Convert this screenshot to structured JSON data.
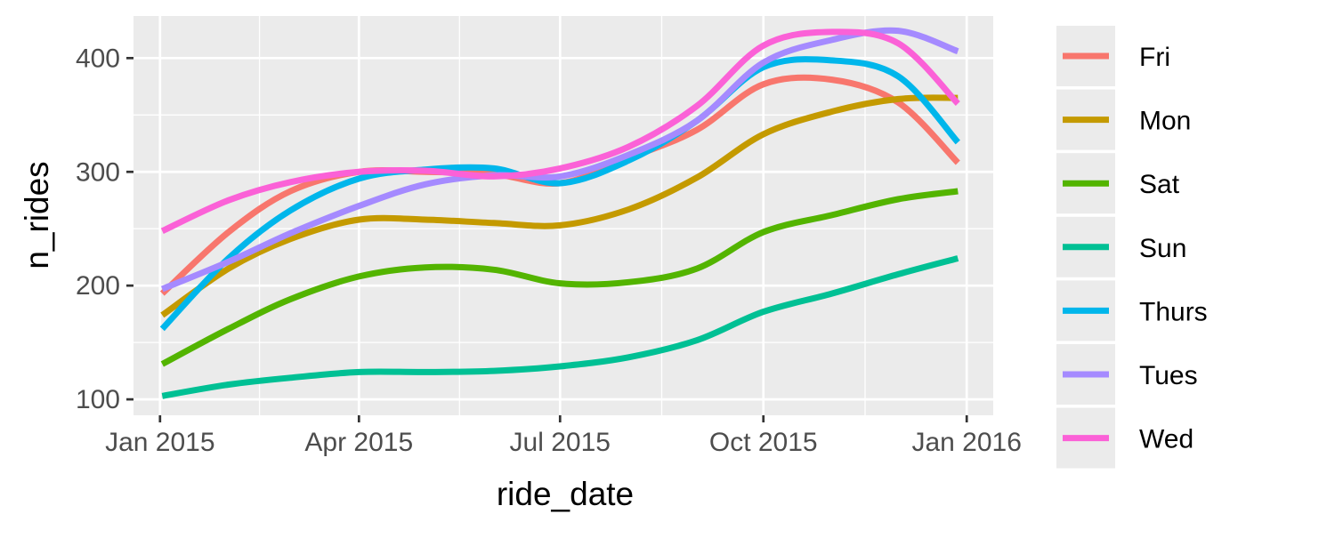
{
  "chart_data": {
    "type": "line",
    "title": "",
    "xlabel": "ride_date",
    "ylabel": "n_rides",
    "x_ticks": [
      "Jan 2015",
      "Apr 2015",
      "Jul 2015",
      "Oct 2015",
      "Jan 2016"
    ],
    "y_ticks": [
      100,
      200,
      300,
      400
    ],
    "xlim": [
      "2014-12-20",
      "2016-01-13"
    ],
    "ylim": [
      86,
      437
    ],
    "grid": true,
    "legend_position": "right",
    "x": [
      "2015-01-02",
      "2015-02-01",
      "2015-03-01",
      "2015-04-01",
      "2015-05-01",
      "2015-06-01",
      "2015-07-01",
      "2015-08-01",
      "2015-09-01",
      "2015-10-01",
      "2015-11-01",
      "2015-12-01",
      "2015-12-28"
    ],
    "series": [
      {
        "name": "Fri",
        "color": "#F8766D",
        "values": [
          193,
          247,
          283,
          300,
          300,
          298,
          290,
          312,
          337,
          377,
          381,
          361,
          308
        ]
      },
      {
        "name": "Mon",
        "color": "#C49A00",
        "values": [
          174,
          215,
          241,
          258,
          258,
          255,
          253,
          267,
          295,
          333,
          353,
          364,
          365
        ]
      },
      {
        "name": "Sat",
        "color": "#53B400",
        "values": [
          131,
          162,
          188,
          208,
          216,
          214,
          202,
          203,
          215,
          247,
          262,
          276,
          283
        ]
      },
      {
        "name": "Sun",
        "color": "#00C094",
        "values": [
          103,
          113,
          119,
          124,
          124,
          125,
          129,
          137,
          152,
          177,
          193,
          210,
          224
        ]
      },
      {
        "name": "Thurs",
        "color": "#00B6EB",
        "values": [
          162,
          224,
          266,
          294,
          302,
          303,
          290,
          310,
          345,
          392,
          398,
          384,
          326
        ]
      },
      {
        "name": "Tues",
        "color": "#A58AFF",
        "values": [
          197,
          221,
          246,
          270,
          289,
          297,
          296,
          315,
          345,
          396,
          416,
          424,
          406
        ]
      },
      {
        "name": "Wed",
        "color": "#FB61D7",
        "values": [
          248,
          275,
          291,
          300,
          301,
          296,
          303,
          322,
          358,
          411,
          423,
          413,
          360
        ]
      }
    ]
  }
}
